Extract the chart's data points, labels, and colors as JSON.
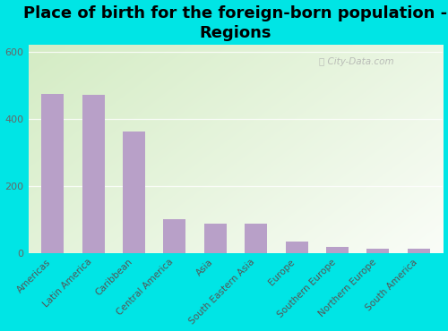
{
  "title": "Place of birth for the foreign-born population -\nRegions",
  "categories": [
    "Americas",
    "Latin America",
    "Caribbean",
    "Central America",
    "Asia",
    "South Eastern Asia",
    "Europe",
    "Southern Europe",
    "Northern Europe",
    "South America"
  ],
  "values": [
    475,
    472,
    362,
    100,
    88,
    87,
    35,
    18,
    12,
    12
  ],
  "bar_color": "#b8a0c8",
  "background_color": "#00e5e5",
  "ylim": [
    0,
    620
  ],
  "yticks": [
    0,
    200,
    400,
    600
  ],
  "title_fontsize": 13,
  "tick_fontsize": 8,
  "watermark": "City-Data.com",
  "grad_top_left": "#d4ecc4",
  "grad_bottom_right": "#f8fdf4"
}
